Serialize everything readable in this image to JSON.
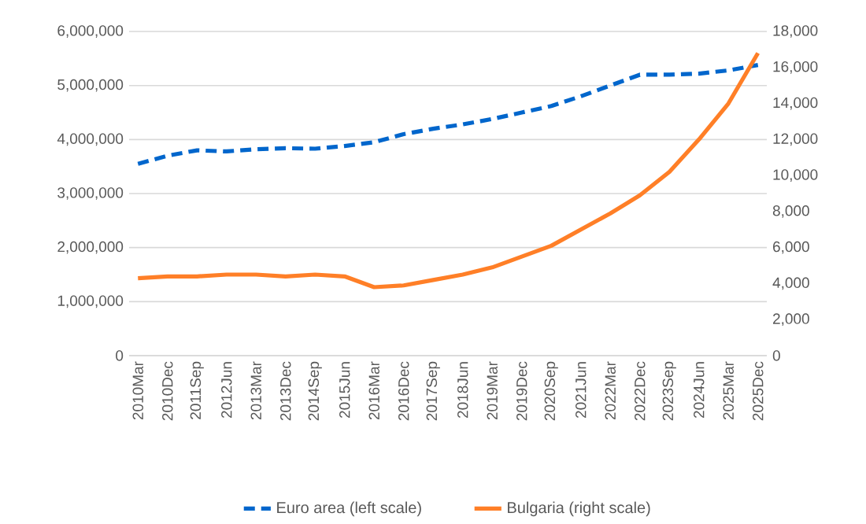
{
  "chart_data": {
    "type": "line",
    "categories": [
      "2010Mar",
      "2010Dec",
      "2011Sep",
      "2012Jun",
      "2013Mar",
      "2013Dec",
      "2014Sep",
      "2015Jun",
      "2016Mar",
      "2016Dec",
      "2017Sep",
      "2018Jun",
      "2019Mar",
      "2019Dec",
      "2020Sep",
      "2021Jun",
      "2022Mar",
      "2022Dec",
      "2023Sep",
      "2024Jun",
      "2025Mar",
      "2025Dec"
    ],
    "series": [
      {
        "name": "Euro area (left scale)",
        "color": "#0066cc",
        "line_style": "dashed",
        "values": [
          3550000,
          3700000,
          3800000,
          3780000,
          3820000,
          3840000,
          3830000,
          3880000,
          3950000,
          4100000,
          4200000,
          4280000,
          4380000,
          4500000,
          4620000,
          4800000,
          5000000,
          5200000,
          5200000,
          5220000,
          5280000,
          5380000
        ]
      },
      {
        "name": "Bulgaria (right scale)",
        "color": "#ff7f27",
        "line_style": "solid",
        "axis": "y2",
        "values": [
          4300,
          4400,
          4400,
          4500,
          4500,
          4400,
          4500,
          4400,
          3800,
          3900,
          4200,
          4500,
          4900,
          5500,
          6100,
          7000,
          7900,
          8900,
          10200,
          12000,
          14000,
          16800
        ]
      }
    ],
    "ylim": [
      0,
      6000000
    ],
    "yticks": [
      {
        "value": 0,
        "label": "0"
      },
      {
        "value": 1000000,
        "label": "1,000,000"
      },
      {
        "value": 2000000,
        "label": "2,000,000"
      },
      {
        "value": 3000000,
        "label": "3,000,000"
      },
      {
        "value": 4000000,
        "label": "4,000,000"
      },
      {
        "value": 5000000,
        "label": "5,000,000"
      },
      {
        "value": 6000000,
        "label": "6,000,000"
      }
    ],
    "y2lim": [
      0,
      18000
    ],
    "y2ticks": [
      {
        "value": 0,
        "label": "0"
      },
      {
        "value": 2000,
        "label": "2,000"
      },
      {
        "value": 4000,
        "label": "4,000"
      },
      {
        "value": 6000,
        "label": "6,000"
      },
      {
        "value": 8000,
        "label": "8,000"
      },
      {
        "value": 10000,
        "label": "10,000"
      },
      {
        "value": 12000,
        "label": "12,000"
      },
      {
        "value": 14000,
        "label": "14,000"
      },
      {
        "value": 16000,
        "label": "16,000"
      },
      {
        "value": 18000,
        "label": "18,000"
      }
    ],
    "grid": "y",
    "legend": "bottom"
  }
}
